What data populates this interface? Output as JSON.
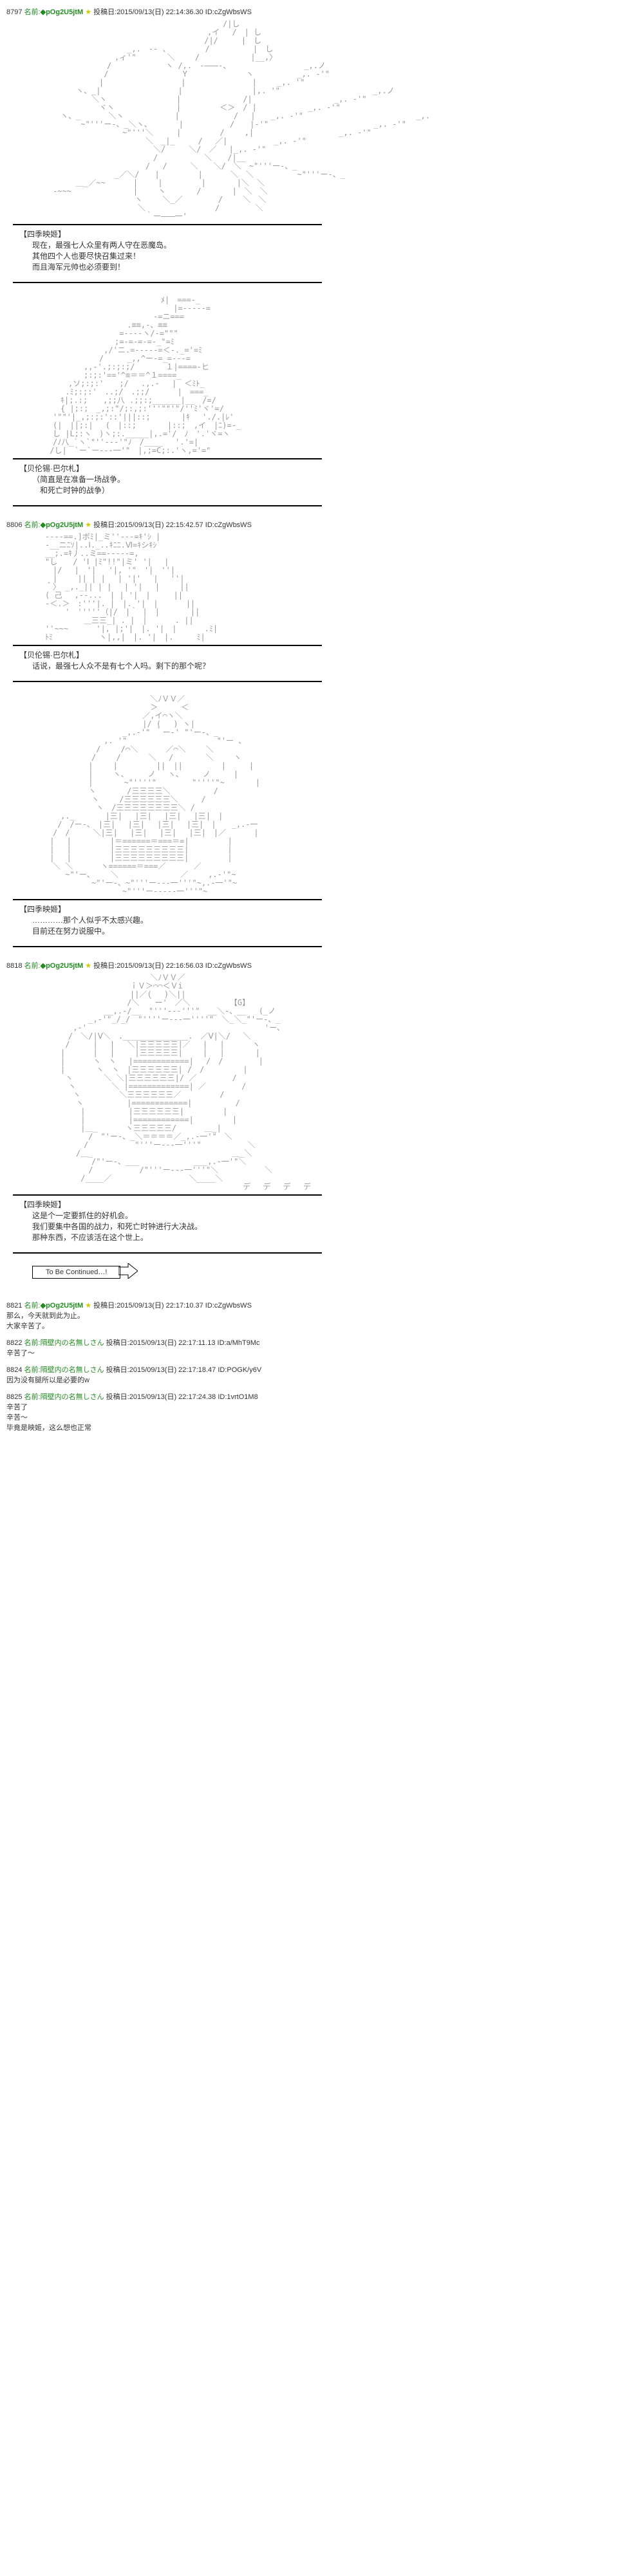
{
  "posts": [
    {
      "num": "8797",
      "name_label": "名前:",
      "trip": "◆pOg2U5jtM",
      "star": "★",
      "post_label": "投稿日:",
      "date": "2015/09/13(日) 22:14:36.30 ID:cZgWbsWS",
      "aa": "　　　　　　　　　　　　　　　　　　　　　　　/|し\n　　　　　　　　　　　　　　　　　　　　　,イ　 /　| し\n　　　　　　　　　　　　　　　　　　　　 /|/　　　|　し\n　　　　　　　　　　 _,.　-- 、　　　　　/　　　　　 |　し\n　　　　　　　　　,ィ'\"　　　　＼　　 /　　　　　　 |__,〉\n　　　　　　　　/　　　　　　　ヽ /,.　-―――-、　　　　　　　　　　_,.ノ\n　　　　　　　 /　　　　　　　　　 Y　　　　　　　 ヽ　　　　　 _,. -'\"\n　　　　　　　|　　　　　　　　　　|　　　　　　　　 |　　 _,. '\"\n　　　　ヽ、_|　　　　　　　　　　|　　　　　　　　　|,. '\"　　　　　　　　　　　　_,.ノ\n　　　　　　＼ヽ　　　　　　　　　|　　　　　　　　/|　　　　　　　　　　 _,. -'\"\n　　　　　　　ヾヽ　　　　　　　　|　　　　　＜＞　/ |　　　　　　 _,. -'\"\n　　ヽ、_　　　 ＼ヽ　　　　　　 |　　　　　　　/　 |　　_,. -'\"　　　　　　　　　　　　　　 _,.\n　　　　 ~\"'''ー-、_＼ヽ、　　　　|　　　　　　/　　|-'\"　　　　　　　　　　　　　 _,. -'\"\n　　　　　　　　　　~\"'''＼　　　|　　　　　/　　 ,|　　　　　　　　　　　_,. -'\"\n　　　　　　　　　　　　　＼　_|_　　　/　 ／|　　　　　　_,. -'\"\n　　　　　　　　　　　　　　＼/　　　＼/　／　 |_,. -'\"\n　　　　　　　　　　　　　　/　　　　　　＼　　/|__\n　　　　　　　　　　　　　/　 /　　　＼　　＼/　＼　~\"'''ー-、_\n　　　　　　　　　_／＼/　　|　　　　　|　　　 ＼　＼　　　　　 ~\"'''ー-、_\n　　　　＿_／~~　　　 |　　 |　　　　　|　　　　|＼　＼\n　-~~~　　　　　　　　|　　 ヽ　　　　/　　　　|　＼　＼\n　　　　　　　　　　　 ヽ　　 ＼_／　　　　 /　　 ＼　＼\n　　　　　　　　　　　　＼　　　　　　　　　/　　　　 ＼\n　　　　　　　　　　　　　｀ー―――一'",
      "speaker": "【四季映姬】",
      "dialogue": "现在，最强七人众里有两人守在恶魔岛。\n其他四个人也要尽快召集过来！\n而且海军元帅也必须要到！"
    },
    {
      "num": "",
      "aa": "　　　　　　　　　　　　　　　ﾒ|　===-_\n　　　　　　　　　　　　　　　　 |=-----=\n　　　　　　　　　　　　　　-=ニ===\n　　　　　　　　　　 .≡≡,-、≡≡\n　　　　　　　　　 =----ヽ/-=\"\"\"\n　　　　　　　　　;=-=-=-=-_\"=ﾐ\n　　　　　　　 ,/'ニ.=-----=＜-._='=ﾐ\n　　　　　　　/　　　_,,^ー-=_=---=\n　　　　　,,-'.;:;:;/　　　　１|====-ヒ\n　　　　　;:;:'=='^≡＝＝^１====_\n　　　,ソ;:;:'　　;/　 .,.-　 |　＜ﾐﾄ_\n　　 .ﾐ;:;:'　..;/　.;;/　　　 |　===_\n　　ｷ|;.:;　　,;;八 .;;:;______|__　/=/\n　　{ |;:;　_,;:\"/;:,;:'''\"\"'\"/''ﾐ'ヾ'=/\n　'\"\"'|_,;:;:'::'|||::;　　　　|ｷ　 './.|ﾚ'\n　(|　||;:|　 (　|::;　　　　|::;　,イ　|ﾆ)=-_\n　し |L;:ヽ　)ヽ;:._____|,.='/　ﾉ　'.'ヾ=ヽ\n　/ﾉ八_`ヽ`\"''---'\"ﾉ　/____　 '.'=|\n /し|　`ー`ー---一'\"　|,;=C;:.'ヽ,='=\"",
      "speaker": "【贝伦锡·巴尔札】",
      "dialogue": "（简直是在准备一场战争。\n　和死亡时钟的战争）"
    },
    {
      "num": "8806",
      "name_label": "名前:",
      "trip": "◆pOg2U5jtM",
      "star": "★",
      "post_label": "投稿日:",
      "date": "2015/09/13(日) 22:15:42.57 ID:cZgWbsWS",
      "aa": "----==.]ボﾐ|_ミ''---=ｷ'ｼ |\n-__ニﾆｿ|..Ⅰ._..ｷﾆﾆ.Ⅵ=ｷシｷｼ\n__;.=ｷ丿..ミ==-----=,\n\"し　　/ 'Ⅰ |ﾐ\"!!\"|ミ' '|　 |\n　|/　 |　'|　 '|, '\"　'|　''|\n　|　　 || | |　 | '|'　 |　 ''|\n＾〉 _,._|| | |　 | '|　 |　　 ||\n( 己　 ,--...　| | '|　|　　　||\n-＜.＞　:'''|. |　|. '|　|　　　 ||\n　　 '　'''''（|/　|｀ |　|　　　　||\n　　　　　＿三三_| . |　|　　　 . ||\n''~~~　　　 '|, |;'|　|. '|　|　　　 .ﾐ|\nﾄﾐ　　　　　　ヽ|,,|　|. '|　|.　　　ﾐ|",
      "speaker": "【贝伦锡·巴尔札】",
      "dialogue": "话说，最强七人众不是有七个人吗。剩下的那个呢？"
    },
    {
      "num": "",
      "aa": "　　　　　　　　　　　　　 ＼ﾉＶＶ／\n　　　　　　　　　　　　　 ＞　　　＜\n　　　　　　　　　　　　 ／,イ⌒ヽ＼\n　　　　　　　　　　　　 |/ (　 ) ヽ|\n　　　　　　　　　　_,.-'\" ｀ー-' \"'ー-、_\n　　　　　　　 ,. '\"　　　　　　　　　　　 \"'ー 、\n　　　　　　 /　　 /⌒＼　　　 ／⌒＼　　 ＼\n　　　　　　/　　 /　　　 ＼　 / 　　　 ＼　　 ヽ\n　　　　　 |　　 |　　　　　||　||　　　　　|　　　|\n　　　　　 |　　 ヽ、　　　ノ　 ヽ、　　　ノ　　　|\n　　　　　 |　　　　~\"''''\"　　　　 \"''''\"~　　　　|\n　　　　　 ヽ　　　　/三三三三＼　　　　　 /\n　　　　　　ヽ　　 /三三三三三三＼　　　/\n　　　　　　 ヽ　/三三三三三三三三＼ /\n　　,._　　　　|三|　 |三|　 |三|　 |三|　|\n　 /　/ー-、　|三|　 |三|　 |三|　 |三|　|　　_,.-一\n　/　/　　　＼|三|　 |三|　 |三|　 |三|　|／　　　 |\n |　 |　　　　　|＝======＝===＝=|　　　　　|\n |　 |　　　　　|三三三三三三三三三|　　　　　|\n |　 |　　　　　|三三三三三三三三三|　　　　　|\n　＼ ＼　　　 ヽ======＝===／　　　 ／\n　　 ~\"'ー、　　 ＼　　　　　　　　／　　 ,.-'\"~\n　　　　　　~\"'ー-、~\"'''ー---一'''\"~,.-一'\"~\n　　　　　　　　　　~\"'''ー-----一'''\"~",
      "speaker": "【四季映姬】",
      "dialogue": "…………那个人似乎不太感兴趣。\n目前还在努力说服中。"
    },
    {
      "num": "8818",
      "name_label": "名前:",
      "trip": "◆pOg2U5jtM",
      "star": "★",
      "post_label": "投稿日:",
      "date": "2015/09/13(日) 22:16:56.03 ID:cZgWbsWS",
      "aa": "　　　　　　　　　　　　　 ＼ﾉＶＶ／\n　　　　　　　　　　　ｉＶ＞⌒⌒＜Ｖi\n　　　　　　　　　　　||／(　 )＼||\n　　　　　　　　　　 /＼　｀ー'　／＼ 　　　　　【G】\n　　　　　　　 __,.-/__　\"'''---'''\"　__＼-、__　 (_ノ\n　　　　　 _,-'\"_/_/　\"''''ー---一''''\"　＼_＼_\"'ー-、_\n　　　 ,-'　　　　　　　　　　　　　　　　　　　　　　　'ー、\n　　　/　＼/|Ⅴ＼　.______________.　／Ⅴ|＼/　 ＼\n　　 /　　　|　 |　 ＼|三三三三三|／　 |　 |　　　 ヽ\n　　|　　　 |　 |　　 |三三三三三|　　 |　 |　　　　|\n　　|　　　 ヽ　ヽ　 |============|　 /　/　　　　 |\n　　|　　　　ヽ　ヽ　|三三三三三三| /　/　　　　　|\n　　 ヽ　　　　＼ ＼|三三三三三三|/ ／　　　　 /\n　　　ヽ　　　　 ＼ |=============| ／　　　　 /\n　　　 ヽ　　　　　＼三三三三三三／　　　　　/\n　　　　ヽ　　　　　 |============|　　　　　 /\n　　　　 |　　　　　 |三三三三三三|　　　　　|\n　　　　 |　　　　　 |============|　　　　　|\n　　　　 |＿_　　　 ヽ三三三三三/　　　 ＿_|\n　　　　　 /　\"'ー-、_＼＝＝＝＝／_,.-一'\"　＼\n　　　　　/　　　　　　\"'''ー---一'''\"　　　　　　＼\n　　　　/＿_　　　　　　　　　　　　　　　　　　＿_＼\n　　　　　　/\"'ー-、___　　　　　　　___,.-一'\"＼\n　　　　　 /　　　　　　/\"'''ー---一'''\"＼　　　　　　＼\n　　　　 /____／　　　　　　　　　　＼____＼\n　　　　　　　　　　　　　　　　　　　　　　　　　 デ　 デ　 デ　 デ",
      "speaker": "【四季映姬】",
      "dialogue": "这是个一定要抓住的好机会。\n我们要集中各国的战力，和死亡时钟进行大决战。\n那种东西，不应该活在这个世上。",
      "tbc": "To Be Continued…!"
    }
  ],
  "replies": [
    {
      "num": "8821",
      "name_label": "名前:",
      "trip": "◆pOg2U5jtM",
      "star": "★",
      "post_label": "投稿日:",
      "date": "2015/09/13(日) 22:17:10.37 ID:cZgWbsWS",
      "text": "那么，今天就到此为止。\n大家辛苦了。"
    },
    {
      "num": "8822",
      "name_label": "名前:",
      "name": "隔壁内の名無しさん",
      "post_label": "投稿日:",
      "date": "2015/09/13(日) 22:17:11.13 ID:a/MhT9Mc",
      "text": "辛苦了～"
    },
    {
      "num": "8824",
      "name_label": "名前:",
      "name": "隔壁内の名無しさん",
      "post_label": "投稿日:",
      "date": "2015/09/13(日) 22:17:18.47 ID:POGK/y6V",
      "text": "因为没有腿所以是必要的w"
    },
    {
      "num": "8825",
      "name_label": "名前:",
      "name": "隔壁内の名無しさん",
      "post_label": "投稿日:",
      "date": "2015/09/13(日) 22:17:24.38 ID:1vrtO1M8",
      "text": "辛苦了\n辛苦～\n毕竟是映姬，这么想也正常"
    }
  ]
}
